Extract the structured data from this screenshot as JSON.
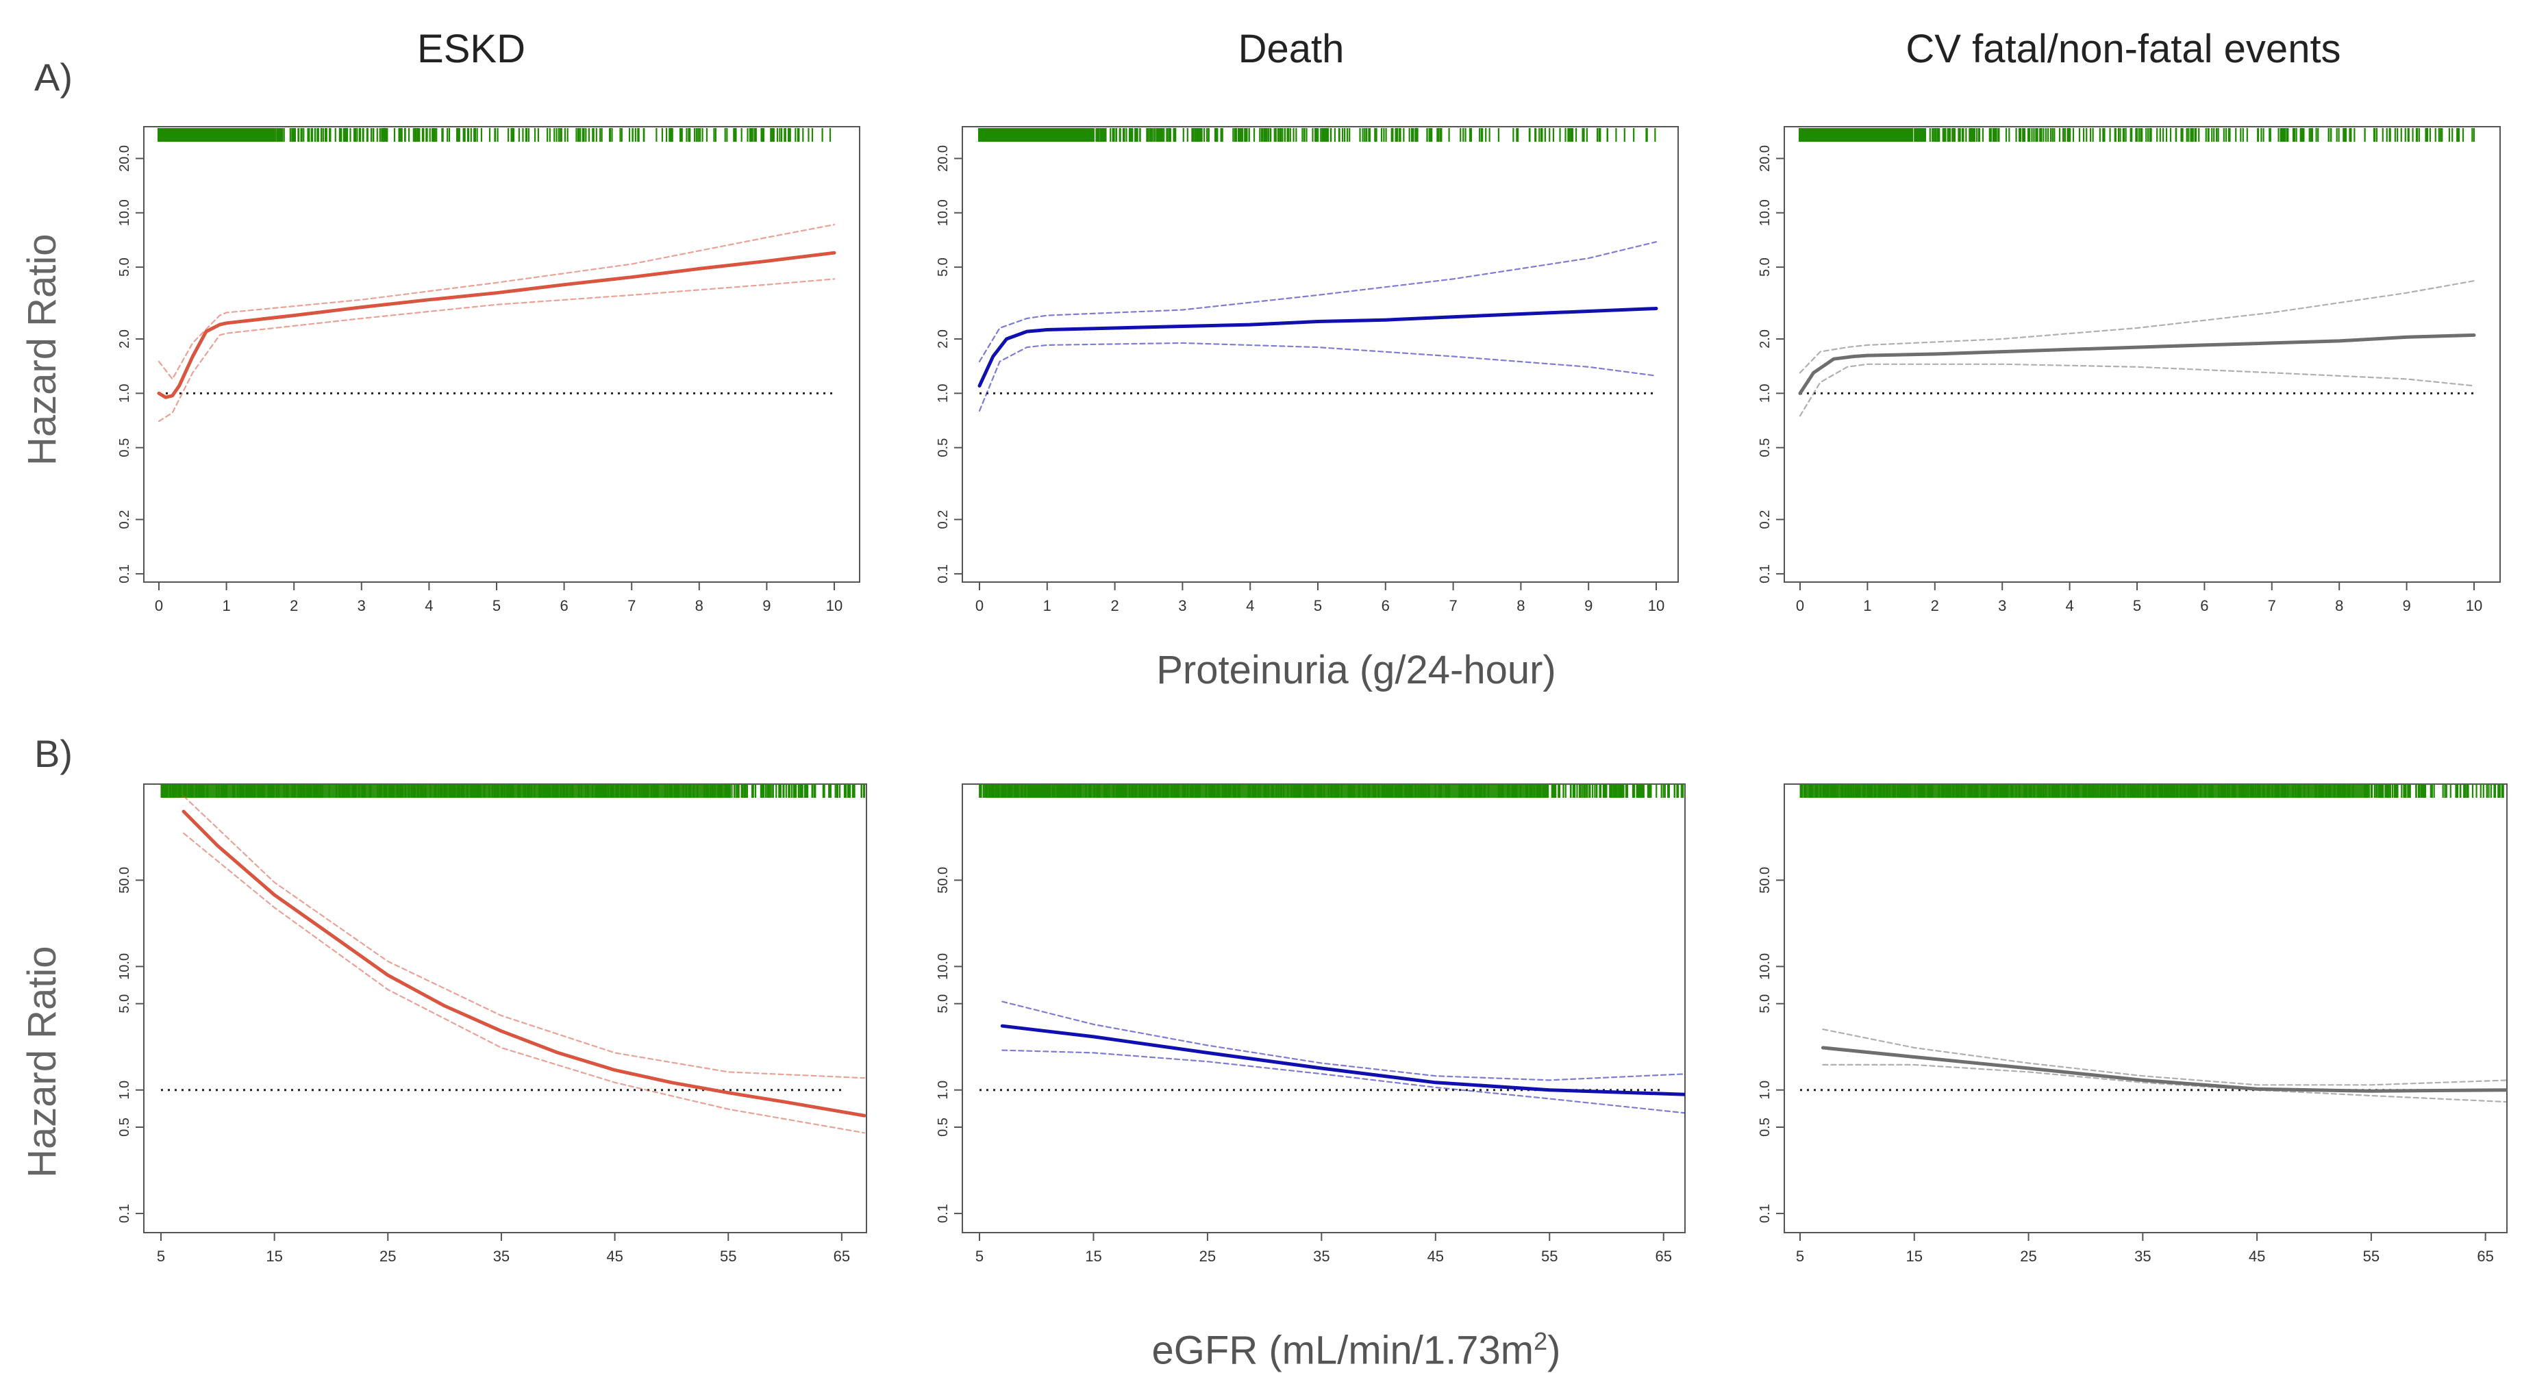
{
  "column_titles": [
    "ESKD",
    "Death",
    "CV fatal/non-fatal events"
  ],
  "row_labels": [
    "A)",
    "B)"
  ],
  "ylabel": "Hazard Ratio",
  "xlabels": {
    "proteinuria": "Proteinuria (g/24-hour)",
    "egfr_prefix": "eGFR (mL/min/1.73m",
    "egfr_sup": "2",
    "egfr_suffix": ")"
  },
  "colors": {
    "eskd": "#d9553f",
    "death": "#1010b0",
    "cv": "#6e6e6e",
    "rug": "#1e8a00"
  },
  "chart_data": [
    {
      "type": "line",
      "title": "ESKD",
      "row": "A",
      "xlabel": "Proteinuria (g/24-hour)",
      "ylabel": "Hazard Ratio",
      "x_ticks": [
        0,
        1,
        2,
        3,
        4,
        5,
        6,
        7,
        8,
        9,
        10
      ],
      "y_ticks": [
        0.1,
        0.2,
        0.5,
        1.0,
        2.0,
        5.0,
        10.0,
        20.0
      ],
      "y_tick_labels": [
        "0.1",
        "0.2",
        "0.5",
        "1.0",
        "2.0",
        "5.0",
        "10.0",
        "20.0"
      ],
      "xlim": [
        0,
        10
      ],
      "ylim": [
        0.09,
        30
      ],
      "log_y": true,
      "reference_line": 1.0,
      "series": [
        {
          "name": "estimate",
          "x": [
            0,
            0.1,
            0.2,
            0.3,
            0.5,
            0.7,
            0.9,
            1,
            2,
            3,
            4,
            5,
            6,
            7,
            8,
            9,
            10
          ],
          "y": [
            1.0,
            0.95,
            0.97,
            1.1,
            1.6,
            2.2,
            2.4,
            2.45,
            2.7,
            3.0,
            3.3,
            3.6,
            4.0,
            4.4,
            4.9,
            5.4,
            6.0
          ]
        },
        {
          "name": "upper 95% CI",
          "x": [
            0,
            0.2,
            0.5,
            0.9,
            1,
            3,
            5,
            7,
            9,
            10
          ],
          "y": [
            1.5,
            1.2,
            1.9,
            2.7,
            2.8,
            3.3,
            4.1,
            5.2,
            7.3,
            8.6
          ]
        },
        {
          "name": "lower 95% CI",
          "x": [
            0,
            0.2,
            0.5,
            0.9,
            1,
            3,
            5,
            7,
            9,
            10
          ],
          "y": [
            0.7,
            0.78,
            1.3,
            2.1,
            2.15,
            2.6,
            3.1,
            3.5,
            4.0,
            4.3
          ]
        }
      ]
    },
    {
      "type": "line",
      "title": "Death",
      "row": "A",
      "xlabel": "Proteinuria (g/24-hour)",
      "ylabel": "Hazard Ratio",
      "x_ticks": [
        0,
        1,
        2,
        3,
        4,
        5,
        6,
        7,
        8,
        9,
        10
      ],
      "y_ticks": [
        0.1,
        0.2,
        0.5,
        1.0,
        2.0,
        5.0,
        10.0,
        20.0
      ],
      "y_tick_labels": [
        "0.1",
        "0.2",
        "0.5",
        "1.0",
        "2.0",
        "5.0",
        "10.0",
        "20.0"
      ],
      "xlim": [
        0,
        10
      ],
      "ylim": [
        0.09,
        30
      ],
      "log_y": true,
      "reference_line": 1.0,
      "series": [
        {
          "name": "estimate",
          "x": [
            0,
            0.2,
            0.4,
            0.7,
            1,
            2,
            3,
            4,
            5,
            6,
            7,
            8,
            9,
            10
          ],
          "y": [
            1.1,
            1.6,
            2.0,
            2.2,
            2.25,
            2.3,
            2.35,
            2.4,
            2.5,
            2.55,
            2.65,
            2.75,
            2.85,
            2.95
          ]
        },
        {
          "name": "upper 95% CI",
          "x": [
            0,
            0.3,
            0.7,
            1,
            3,
            5,
            7,
            9,
            10
          ],
          "y": [
            1.5,
            2.3,
            2.6,
            2.7,
            2.9,
            3.5,
            4.3,
            5.6,
            6.9
          ]
        },
        {
          "name": "lower 95% CI",
          "x": [
            0,
            0.3,
            0.7,
            1,
            3,
            5,
            7,
            9,
            10
          ],
          "y": [
            0.8,
            1.5,
            1.8,
            1.85,
            1.9,
            1.8,
            1.6,
            1.4,
            1.25
          ]
        }
      ]
    },
    {
      "type": "line",
      "title": "CV fatal/non-fatal events",
      "row": "A",
      "xlabel": "Proteinuria (g/24-hour)",
      "ylabel": "Hazard Ratio",
      "x_ticks": [
        0,
        1,
        2,
        3,
        4,
        5,
        6,
        7,
        8,
        9,
        10
      ],
      "y_ticks": [
        0.1,
        0.2,
        0.5,
        1.0,
        2.0,
        5.0,
        10.0,
        20.0
      ],
      "y_tick_labels": [
        "0.1",
        "0.2",
        "0.5",
        "1.0",
        "2.0",
        "5.0",
        "10.0",
        "20.0"
      ],
      "xlim": [
        0,
        10
      ],
      "ylim": [
        0.09,
        30
      ],
      "log_y": true,
      "reference_line": 1.0,
      "series": [
        {
          "name": "estimate",
          "x": [
            0,
            0.2,
            0.5,
            0.8,
            1,
            2,
            3,
            4,
            5,
            6,
            7,
            8,
            9,
            10
          ],
          "y": [
            1.0,
            1.3,
            1.55,
            1.6,
            1.62,
            1.65,
            1.7,
            1.75,
            1.8,
            1.85,
            1.9,
            1.95,
            2.05,
            2.1
          ]
        },
        {
          "name": "upper 95% CI",
          "x": [
            0,
            0.3,
            0.7,
            1,
            3,
            5,
            7,
            9,
            10
          ],
          "y": [
            1.3,
            1.7,
            1.8,
            1.85,
            2.0,
            2.3,
            2.8,
            3.6,
            4.2
          ]
        },
        {
          "name": "lower 95% CI",
          "x": [
            0,
            0.3,
            0.7,
            1,
            3,
            5,
            7,
            9,
            10
          ],
          "y": [
            0.75,
            1.15,
            1.4,
            1.45,
            1.45,
            1.4,
            1.3,
            1.2,
            1.1
          ]
        }
      ]
    },
    {
      "type": "line",
      "title": "ESKD",
      "row": "B",
      "xlabel": "eGFR (mL/min/1.73m2)",
      "ylabel": "Hazard Ratio",
      "x_ticks": [
        5,
        15,
        25,
        35,
        45,
        55,
        65
      ],
      "y_ticks": [
        0.1,
        0.5,
        1.0,
        5.0,
        10.0,
        50.0
      ],
      "y_tick_labels": [
        "0.1",
        "0.5",
        "1.0",
        "5.0",
        "10.0",
        "50.0"
      ],
      "xlim": [
        5,
        67
      ],
      "ylim": [
        0.07,
        300
      ],
      "log_y": true,
      "reference_line": 1.0,
      "series": [
        {
          "name": "estimate",
          "x": [
            7,
            10,
            15,
            20,
            25,
            30,
            35,
            40,
            45,
            50,
            55,
            60,
            67
          ],
          "y": [
            180,
            95,
            38,
            18,
            8.5,
            4.8,
            3.0,
            2.0,
            1.45,
            1.15,
            0.95,
            0.8,
            0.62
          ]
        },
        {
          "name": "upper 95% CI",
          "x": [
            7,
            15,
            25,
            35,
            45,
            55,
            67
          ],
          "y": [
            240,
            48,
            11,
            4.0,
            2.0,
            1.4,
            1.25
          ]
        },
        {
          "name": "lower 95% CI",
          "x": [
            7,
            15,
            25,
            35,
            45,
            55,
            67
          ],
          "y": [
            120,
            30,
            6.5,
            2.2,
            1.15,
            0.7,
            0.45
          ]
        }
      ]
    },
    {
      "type": "line",
      "title": "Death",
      "row": "B",
      "xlabel": "eGFR (mL/min/1.73m2)",
      "ylabel": "Hazard Ratio",
      "x_ticks": [
        5,
        15,
        25,
        35,
        45,
        55,
        65
      ],
      "y_ticks": [
        0.1,
        0.5,
        1.0,
        5.0,
        10.0,
        50.0
      ],
      "y_tick_labels": [
        "0.1",
        "0.5",
        "1.0",
        "5.0",
        "10.0",
        "50.0"
      ],
      "xlim": [
        5,
        67
      ],
      "ylim": [
        0.07,
        300
      ],
      "log_y": true,
      "reference_line": 1.0,
      "series": [
        {
          "name": "estimate",
          "x": [
            7,
            15,
            25,
            35,
            45,
            55,
            67
          ],
          "y": [
            3.3,
            2.7,
            2.0,
            1.5,
            1.15,
            1.0,
            0.92
          ]
        },
        {
          "name": "upper 95% CI",
          "x": [
            7,
            15,
            25,
            35,
            45,
            55,
            67
          ],
          "y": [
            5.2,
            3.4,
            2.3,
            1.65,
            1.3,
            1.2,
            1.35
          ]
        },
        {
          "name": "lower 95% CI",
          "x": [
            7,
            15,
            25,
            35,
            45,
            55,
            67
          ],
          "y": [
            2.1,
            2.0,
            1.7,
            1.35,
            1.05,
            0.85,
            0.65
          ]
        }
      ]
    },
    {
      "type": "line",
      "title": "CV fatal/non-fatal events",
      "row": "B",
      "xlabel": "eGFR (mL/min/1.73m2)",
      "ylabel": "Hazard Ratio",
      "x_ticks": [
        5,
        15,
        25,
        35,
        45,
        55,
        65
      ],
      "y_ticks": [
        0.1,
        0.5,
        1.0,
        5.0,
        10.0,
        50.0
      ],
      "y_tick_labels": [
        "0.1",
        "0.5",
        "1.0",
        "5.0",
        "10.0",
        "50.0"
      ],
      "xlim": [
        5,
        67
      ],
      "ylim": [
        0.07,
        300
      ],
      "log_y": true,
      "reference_line": 1.0,
      "series": [
        {
          "name": "estimate",
          "x": [
            7,
            15,
            25,
            35,
            45,
            55,
            67
          ],
          "y": [
            2.2,
            1.85,
            1.5,
            1.2,
            1.02,
            0.98,
            1.0
          ]
        },
        {
          "name": "upper 95% CI",
          "x": [
            7,
            15,
            25,
            35,
            45,
            55,
            67
          ],
          "y": [
            3.1,
            2.2,
            1.65,
            1.3,
            1.1,
            1.1,
            1.2
          ]
        },
        {
          "name": "lower 95% CI",
          "x": [
            7,
            15,
            25,
            35,
            45,
            55,
            67
          ],
          "y": [
            1.6,
            1.6,
            1.4,
            1.15,
            1.0,
            0.9,
            0.8
          ]
        }
      ]
    }
  ]
}
